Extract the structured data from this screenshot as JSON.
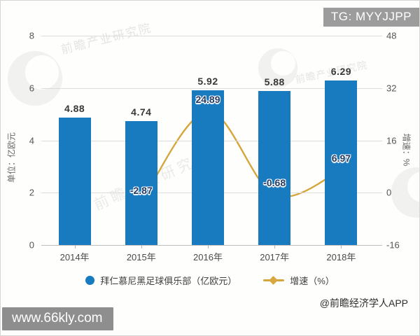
{
  "overlays": {
    "tg_badge": "TG: MYYJJPP",
    "site_badge": "www.66kly.com",
    "source_credit": "@前瞻经济学人APP"
  },
  "watermark": {
    "text": "前瞻产业研究院"
  },
  "colors": {
    "bar": "#187BC0",
    "line": "#D5A63C",
    "marker_fill": "#D9A740",
    "marker_edge": "#C1912E",
    "line_label": "#233A63",
    "grid": "#DCDCDC",
    "axis_line": "#BFBFBF",
    "tg_badge_bg": "#9C9C9C",
    "site_badge_bg": "#8E8E8E"
  },
  "chart_data": {
    "type": "bar+line",
    "categories": [
      "2014年",
      "2015年",
      "2016年",
      "2017年",
      "2018年"
    ],
    "series": [
      {
        "name": "拜仁慕尼黑足球俱乐部（亿欧元）",
        "type": "bar",
        "axis": "left",
        "categories": [
          "2014年",
          "2015年",
          "2016年",
          "2017年",
          "2018年"
        ],
        "values": [
          4.88,
          4.74,
          5.92,
          5.88,
          6.29
        ],
        "labels": [
          "4.88",
          "4.74",
          "5.92",
          "5.88",
          "6.29"
        ]
      },
      {
        "name": "增速（%）",
        "type": "line",
        "axis": "right",
        "categories": [
          "2015年",
          "2016年",
          "2017年",
          "2018年"
        ],
        "values": [
          -2.87,
          24.89,
          -0.68,
          6.97
        ],
        "labels": [
          "-2.87",
          "24.89",
          "-0.68",
          "6.97"
        ]
      }
    ],
    "left_axis": {
      "label": "单位：亿欧元",
      "ticks": [
        0,
        2,
        4,
        6,
        8
      ],
      "range": [
        0,
        8
      ]
    },
    "right_axis": {
      "label": "增速：%",
      "ticks": [
        -16,
        0,
        16,
        32,
        48
      ],
      "range": [
        -16,
        48
      ]
    },
    "grid": true,
    "legend_position": "bottom"
  }
}
